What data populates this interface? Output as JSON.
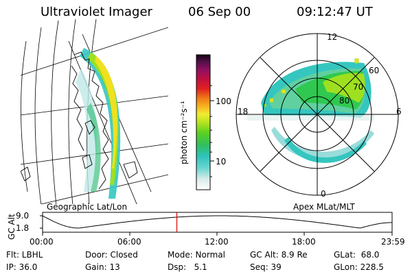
{
  "header": {
    "instrument": "Ultraviolet Imager",
    "date": "06 Sep 00",
    "time": "09:12:47 UT"
  },
  "colorbar": {
    "unit_label": "photon cm⁻²s⁻¹",
    "ticks": [
      "100",
      "10"
    ],
    "scale": "log"
  },
  "polar_plot": {
    "mlt_labels": {
      "top": "12",
      "left": "18",
      "right": "6",
      "bottom": "0"
    },
    "lat_labels": [
      "60",
      "70",
      "80"
    ]
  },
  "map_labels": {
    "left": "Geographic Lat/Lon",
    "right": "Apex MLat/MLT"
  },
  "timeline": {
    "y_label": "GC Alt",
    "y_ticks": [
      "9.0",
      "1.8"
    ],
    "x_ticks": [
      "00:00",
      "06:00",
      "12:00",
      "18:00",
      "23:59"
    ],
    "marker_time": "09:12:47",
    "marker_color": "#dd0000"
  },
  "status": {
    "filter": "Flt: LBHL",
    "ip": "IP: 36.0",
    "door": "Door: Closed",
    "gain": "Gain: 13",
    "mode": "Mode: Normal",
    "dsp": "Dsp:   5.1",
    "gc_alt": "GC Alt: 8.9 Re",
    "seq": "Seq: 39",
    "glat": "GLat:  68.0",
    "glon": "GLon: 228.5"
  },
  "colors": {
    "aurora_low": "#35c6c0",
    "aurora_mid": "#9ee020",
    "aurora_high": "#f0e020",
    "colorbar_stops": [
      "#ffffff",
      "#e8f0f0",
      "#6ad6d2",
      "#2ec2bc",
      "#30c050",
      "#4ad020",
      "#9ae020",
      "#e8e820",
      "#f8b020",
      "#f07818",
      "#e02020",
      "#c01030",
      "#a01060",
      "#70105a",
      "#501048",
      "#200018"
    ]
  }
}
